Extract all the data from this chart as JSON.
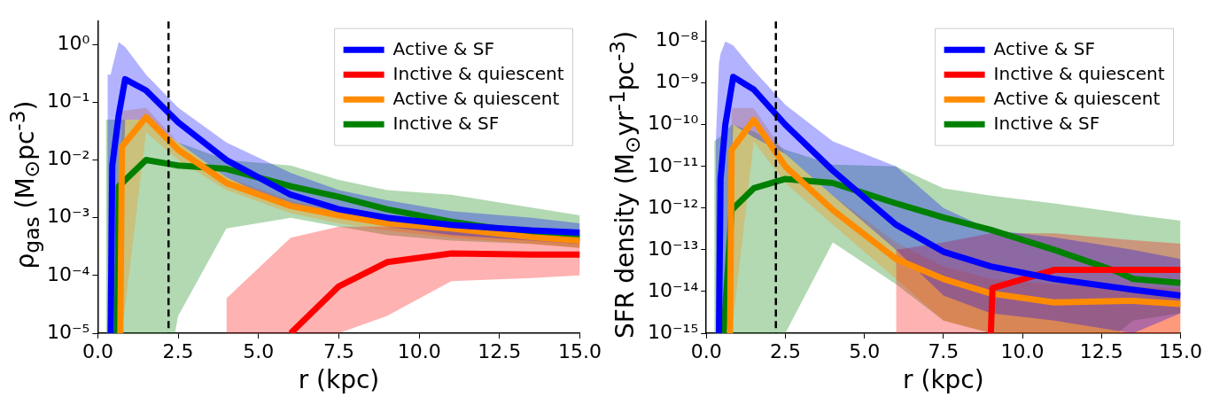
{
  "chart_data": [
    {
      "type": "line",
      "xlabel": "r (kpc)",
      "ylabel": "ρ$_{gas}$ (M$_{⊙}$pc$^{-3}$)",
      "log": "y",
      "grid": false,
      "legend": "top right",
      "marker": "none",
      "line_style": "solid",
      "xlim": [
        0,
        15
      ],
      "xticks": [
        {
          "value": 0,
          "label": "0.0"
        },
        {
          "value": 2.5,
          "label": "2.5"
        },
        {
          "value": 5,
          "label": "5.0"
        },
        {
          "value": 7.5,
          "label": "7.5"
        },
        {
          "value": 10,
          "label": "10.0"
        },
        {
          "value": 12.5,
          "label": "12.5"
        },
        {
          "value": 15,
          "label": "15.0"
        }
      ],
      "ylim": [
        1e-05,
        2.5
      ],
      "yticks": [
        {
          "value": 1e-05,
          "label": "10⁻⁵"
        },
        {
          "value": 0.0001,
          "label": "10⁻⁴"
        },
        {
          "value": 0.001,
          "label": "10⁻³"
        },
        {
          "value": 0.01,
          "label": "10⁻²"
        },
        {
          "value": 0.1,
          "label": "10⁻¹"
        },
        {
          "value": 1,
          "label": "10⁰"
        }
      ],
      "ref_lines": [
        {
          "axis": "x",
          "value": 2.2,
          "color": "#000000",
          "line_style": "dashed"
        }
      ],
      "series": [
        {
          "name": "Active & SF",
          "color": "#0000ff",
          "x": [
            0.3,
            0.4,
            0.45,
            0.65,
            0.85,
            1.5,
            2.5,
            4,
            6,
            7.5,
            9,
            11,
            13.5,
            15
          ],
          "values": [
            null,
            1e-05,
            0.008,
            0.06,
            0.25,
            0.16,
            0.045,
            0.01,
            0.0025,
            0.0014,
            0.001,
            0.00075,
            0.0006,
            0.00055
          ],
          "lower": [
            1e-05,
            1e-05,
            1e-05,
            1e-05,
            0.05,
            0.05,
            0.02,
            0.005,
            0.0015,
            0.001,
            0.0007,
            0.0005,
            0.0004,
            0.00035
          ],
          "upper": [
            0.3,
            0.3,
            0.4,
            1.1,
            0.9,
            0.3,
            0.08,
            0.02,
            0.006,
            0.003,
            0.002,
            0.0013,
            0.001,
            0.0008
          ]
        },
        {
          "name": "Inctive & quiescent",
          "color": "#ff0000",
          "x": [
            4,
            6,
            7.5,
            9,
            11,
            13.5,
            15
          ],
          "values": [
            null,
            1e-05,
            6.5e-05,
            0.00017,
            0.00024,
            0.00023,
            0.00023
          ],
          "lower": [
            1e-05,
            1e-05,
            1e-05,
            2e-05,
            8e-05,
            9e-05,
            0.0001
          ],
          "upper": [
            4e-05,
            0.00045,
            0.0007,
            0.0007,
            0.0006,
            0.0005,
            0.0004
          ]
        },
        {
          "name": "Active & quiescent",
          "color": "#ff8c00",
          "x": [
            0.7,
            0.75,
            1.5,
            2.5,
            4,
            6,
            7.5,
            9,
            11,
            13.5,
            15
          ],
          "values": [
            1e-05,
            0.017,
            0.055,
            0.015,
            0.004,
            0.0016,
            0.0011,
            0.0008,
            0.00065,
            0.00046,
            0.0004
          ],
          "lower": [
            1e-05,
            1e-05,
            0.03,
            0.01,
            0.003,
            0.0012,
            0.0008,
            0.0006,
            0.00045,
            0.00035,
            0.0003
          ],
          "upper": [
            1e-05,
            0.07,
            0.08,
            0.02,
            0.005,
            0.002,
            0.0013,
            0.001,
            0.0008,
            0.0006,
            0.0005
          ]
        },
        {
          "name": "Inctive & SF",
          "color": "#008000",
          "x": [
            0.25,
            0.6,
            0.65,
            1.5,
            2.4,
            2.5,
            4,
            6,
            7.5,
            9,
            11,
            13.5,
            15
          ],
          "values": [
            null,
            1e-05,
            0.0035,
            0.01,
            0.0082,
            0.008,
            0.007,
            0.0035,
            0.0023,
            0.0014,
            0.00085,
            0.00053,
            0.00045
          ],
          "lower": [
            1e-05,
            1e-05,
            1e-05,
            1e-05,
            1e-05,
            2e-05,
            0.00065,
            0.001,
            0.0007,
            0.0005,
            0.0004,
            0.00035,
            0.0003
          ],
          "upper": [
            0.05,
            0.05,
            0.05,
            0.05,
            0.022,
            0.02,
            0.01,
            0.008,
            0.0045,
            0.003,
            0.0025,
            0.0015,
            0.0011
          ]
        }
      ]
    },
    {
      "type": "line",
      "xlabel": "r (kpc)",
      "ylabel": "SFR density (M$_{⊙}$yr$^{-1}$pc$^{-3}$)",
      "log": "y",
      "grid": false,
      "legend": "top right",
      "marker": "none",
      "line_style": "solid",
      "xlim": [
        0,
        15
      ],
      "xticks": [
        {
          "value": 0,
          "label": "0.0"
        },
        {
          "value": 2.5,
          "label": "2.5"
        },
        {
          "value": 5,
          "label": "5.0"
        },
        {
          "value": 7.5,
          "label": "7.5"
        },
        {
          "value": 10,
          "label": "10.0"
        },
        {
          "value": 12.5,
          "label": "12.5"
        },
        {
          "value": 15,
          "label": "15.0"
        }
      ],
      "ylim": [
        1e-15,
        3e-08
      ],
      "yticks": [
        {
          "value": 1e-15,
          "label": "10⁻¹⁵"
        },
        {
          "value": 1e-14,
          "label": "10⁻¹⁴"
        },
        {
          "value": 1e-13,
          "label": "10⁻¹³"
        },
        {
          "value": 1e-12,
          "label": "10⁻¹²"
        },
        {
          "value": 1e-11,
          "label": "10⁻¹¹"
        },
        {
          "value": 1e-10,
          "label": "10⁻¹⁰"
        },
        {
          "value": 1e-09,
          "label": "10⁻⁹"
        },
        {
          "value": 1e-08,
          "label": "10⁻⁸"
        }
      ],
      "ref_lines": [
        {
          "axis": "x",
          "value": 2.2,
          "color": "#000000",
          "line_style": "dashed"
        }
      ],
      "series": [
        {
          "name": "Active & SF",
          "color": "#0000ff",
          "x": [
            0.3,
            0.4,
            0.45,
            0.6,
            0.85,
            1.5,
            2.5,
            4,
            6,
            7.5,
            9,
            11,
            13.5,
            15
          ],
          "values": [
            null,
            1e-15,
            5e-12,
            1e-10,
            1.4e-09,
            7e-10,
            1e-10,
            8e-12,
            4e-13,
            9e-14,
            4e-14,
            2e-14,
            1.1e-14,
            8e-15
          ],
          "lower": [
            1e-15,
            1e-15,
            1e-15,
            1e-15,
            1e-10,
            5e-11,
            2e-11,
            2e-12,
            1e-13,
            8e-15,
            3e-15,
            2e-15,
            1e-15,
            3e-15
          ],
          "upper": [
            4e-11,
            3e-09,
            5e-09,
            1e-08,
            8e-09,
            2e-09,
            3e-10,
            4e-11,
            1e-11,
            1e-12,
            3e-13,
            2e-13,
            1e-13,
            6e-14
          ]
        },
        {
          "name": "Inctive & quiescent",
          "color": "#ff0000",
          "x": [
            6,
            7.5,
            9,
            9.05,
            11,
            13.5,
            15
          ],
          "values": [
            null,
            null,
            1e-15,
            1.2e-14,
            3.3e-14,
            3.3e-14,
            3.3e-14
          ],
          "lower": [
            1e-15,
            1e-15,
            1e-15,
            1e-15,
            1e-15,
            1e-15,
            1e-15
          ],
          "upper": [
            1e-13,
            1.5e-13,
            2.5e-13,
            2.5e-13,
            2.5e-13,
            1.7e-13,
            1.4e-13
          ]
        },
        {
          "name": "Active & quiescent",
          "color": "#ff8c00",
          "x": [
            0.75,
            0.8,
            1.5,
            2.5,
            4,
            6,
            7.5,
            9,
            11,
            13.5,
            15
          ],
          "values": [
            1e-15,
            2.5e-11,
            1.3e-10,
            1e-11,
            9e-13,
            6e-14,
            2e-14,
            9e-15,
            5.5e-15,
            6e-15,
            5e-15
          ],
          "lower": [
            1e-15,
            1e-15,
            4e-11,
            4e-12,
            4e-13,
            2e-14,
            2e-15,
            1e-15,
            1e-15,
            1e-15,
            1e-15
          ],
          "upper": [
            1e-15,
            2.5e-10,
            2.5e-10,
            2e-11,
            2e-12,
            1.5e-13,
            4e-14,
            2e-14,
            1.5e-14,
            1.3e-14,
            1.2e-14
          ]
        },
        {
          "name": "Inctive & SF",
          "color": "#008000",
          "x": [
            0.25,
            0.55,
            0.8,
            1.5,
            2.5,
            4,
            6,
            7.5,
            9,
            11,
            13,
            13.5,
            15
          ],
          "values": [
            null,
            1e-15,
            9e-13,
            3e-12,
            5e-12,
            4e-12,
            1.3e-12,
            6e-13,
            3e-13,
            1e-13,
            3e-14,
            2e-14,
            1.6e-14
          ],
          "lower": [
            1e-15,
            1e-15,
            1e-15,
            1e-15,
            1e-15,
            1.5e-13,
            1.5e-14,
            2e-15,
            1e-15,
            1e-15,
            1e-15,
            2e-15,
            3e-15
          ],
          "upper": [
            4e-11,
            6e-11,
            1e-10,
            7e-11,
            2.5e-11,
            1.1e-11,
            1e-11,
            3e-12,
            2e-12,
            1.3e-12,
            8e-13,
            7e-13,
            5e-13
          ]
        }
      ]
    }
  ]
}
